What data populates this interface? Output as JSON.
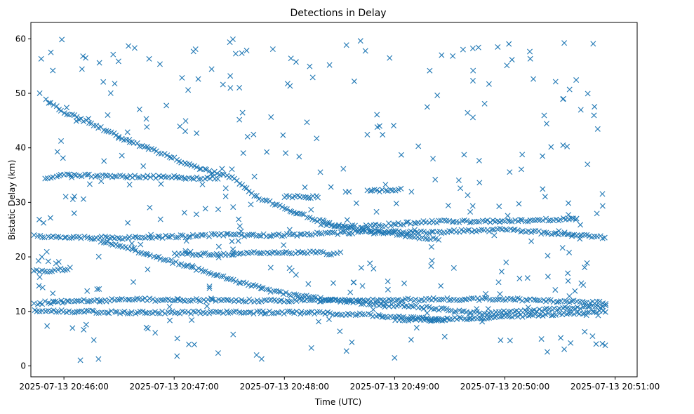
{
  "chart_data": {
    "type": "scatter",
    "title": "Detections in Delay",
    "xlabel": "Time (UTC)",
    "ylabel": "Bistatic Delay (km)",
    "marker": "x",
    "color": "#1f77b4",
    "grid": false,
    "legend": null,
    "xlim_seconds": [
      -18,
      312
    ],
    "x_reference": "2025-07-13 20:46:00",
    "ylim": [
      -2,
      63
    ],
    "x_ticks": [
      {
        "seconds": 0,
        "label": "2025-07-13 20:46:00"
      },
      {
        "seconds": 60,
        "label": "2025-07-13 20:47:00"
      },
      {
        "seconds": 120,
        "label": "2025-07-13 20:48:00"
      },
      {
        "seconds": 180,
        "label": "2025-07-13 20:49:00"
      },
      {
        "seconds": 240,
        "label": "2025-07-13 20:50:00"
      },
      {
        "seconds": 300,
        "label": "2025-07-13 20:51:00"
      }
    ],
    "y_ticks": [
      0,
      10,
      20,
      30,
      40,
      50,
      60
    ],
    "x_data_range_seconds": [
      -15,
      296
    ],
    "tracks": [
      {
        "name": "descending-track-upper",
        "points": [
          [
            -10,
            48.8
          ],
          [
            0,
            46.5
          ],
          [
            15,
            44.5
          ],
          [
            30,
            42
          ],
          [
            45,
            40
          ],
          [
            60,
            38
          ],
          [
            75,
            36
          ],
          [
            90,
            34.8
          ],
          [
            105,
            31
          ],
          [
            120,
            29
          ],
          [
            135,
            27
          ],
          [
            150,
            25.5
          ],
          [
            165,
            25
          ],
          [
            180,
            24.2
          ],
          [
            195,
            23.5
          ],
          [
            205,
            23
          ]
        ]
      },
      {
        "name": "descending-track-middle",
        "points": [
          [
            20,
            23
          ],
          [
            35,
            21.5
          ],
          [
            50,
            20
          ],
          [
            65,
            18.5
          ],
          [
            80,
            17
          ],
          [
            95,
            15.5
          ],
          [
            110,
            14
          ],
          [
            125,
            13
          ],
          [
            140,
            12.3
          ],
          [
            155,
            11.8
          ],
          [
            170,
            11.3
          ],
          [
            185,
            11
          ],
          [
            200,
            10.6
          ],
          [
            215,
            10
          ],
          [
            230,
            9.5
          ],
          [
            245,
            10
          ],
          [
            260,
            10.3
          ],
          [
            270,
            10.5
          ],
          [
            296,
            11
          ]
        ]
      },
      {
        "name": "level-track-12km",
        "points": [
          [
            -16,
            11.5
          ],
          [
            0,
            11.8
          ],
          [
            40,
            12.2
          ],
          [
            80,
            12
          ],
          [
            120,
            12
          ],
          [
            160,
            12
          ],
          [
            200,
            12.2
          ],
          [
            240,
            12.3
          ],
          [
            296,
            11.5
          ]
        ]
      },
      {
        "name": "level-track-10km",
        "points": [
          [
            -16,
            10
          ],
          [
            0,
            10
          ],
          [
            40,
            9.8
          ],
          [
            80,
            9.8
          ],
          [
            120,
            9.8
          ],
          [
            160,
            9.5
          ],
          [
            200,
            8.5
          ],
          [
            240,
            9
          ],
          [
            296,
            10
          ]
        ]
      },
      {
        "name": "level-track-24km",
        "points": [
          [
            -16,
            23.8
          ],
          [
            0,
            23.5
          ],
          [
            40,
            23.5
          ],
          [
            80,
            24
          ],
          [
            120,
            24
          ],
          [
            160,
            24.5
          ],
          [
            200,
            24.5
          ],
          [
            240,
            25
          ],
          [
            296,
            23.5
          ]
        ]
      },
      {
        "name": "segment-26km",
        "points": [
          [
            140,
            26
          ],
          [
            160,
            25.5
          ],
          [
            200,
            26.5
          ],
          [
            240,
            26.5
          ],
          [
            280,
            27
          ]
        ]
      },
      {
        "name": "segment-20km",
        "points": [
          [
            60,
            20.5
          ],
          [
            80,
            20.5
          ],
          [
            120,
            20.8
          ],
          [
            140,
            20.8
          ],
          [
            150,
            20.5
          ]
        ]
      },
      {
        "name": "segment-17km",
        "points": [
          [
            -16,
            17.5
          ],
          [
            -5,
            17.5
          ],
          [
            5,
            18
          ]
        ]
      },
      {
        "name": "segment-35km",
        "points": [
          [
            -10,
            34.5
          ],
          [
            0,
            35
          ],
          [
            75,
            34.5
          ],
          [
            85,
            34.5
          ]
        ]
      },
      {
        "name": "segment-31km",
        "points": [
          [
            120,
            31
          ],
          [
            140,
            31
          ]
        ]
      },
      {
        "name": "segment-32km",
        "points": [
          [
            165,
            32
          ],
          [
            185,
            32.5
          ]
        ]
      },
      {
        "name": "segment-8km",
        "points": [
          [
            180,
            8.5
          ],
          [
            210,
            8.5
          ]
        ]
      }
    ],
    "noise_points_approx": 350,
    "noise_y_range": [
      1,
      60
    ]
  }
}
